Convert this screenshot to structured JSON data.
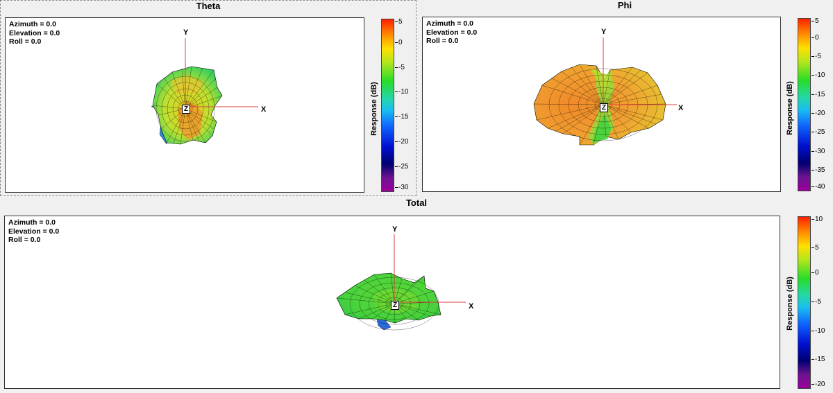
{
  "panels": {
    "theta": {
      "title": "Theta",
      "azimuth": "Azimuth = 0.0",
      "elevation": "Elevation = 0.0",
      "roll": "Roll = 0.0",
      "axes": {
        "x": "X",
        "y": "Y",
        "z": "Z"
      },
      "colorbar": {
        "title": "Response  (dB)",
        "ticks": [
          "5",
          "0",
          "-5",
          "-10",
          "-15",
          "-20",
          "-25",
          "-30"
        ]
      }
    },
    "phi": {
      "title": "Phi",
      "azimuth": "Azimuth = 0.0",
      "elevation": "Elevation = 0.0",
      "roll": "Roll = 0.0",
      "axes": {
        "x": "X",
        "y": "Y",
        "z": "Z"
      },
      "colorbar": {
        "title": "Response  (dB)",
        "ticks": [
          "5",
          "0",
          "-5",
          "-10",
          "-15",
          "-20",
          "-25",
          "-30",
          "-35",
          "-40"
        ]
      }
    },
    "total": {
      "title": "Total",
      "azimuth": "Azimuth = 0.0",
      "elevation": "Elevation = 0.0",
      "roll": "Roll = 0.0",
      "axes": {
        "x": "X",
        "y": "Y",
        "z": "Z"
      },
      "colorbar": {
        "title": "Response  (dB)",
        "ticks": [
          "10",
          "5",
          "0",
          "-5",
          "-10",
          "-15",
          "-20"
        ]
      }
    }
  },
  "colors": {
    "axis_line": "#d84040",
    "mesh_line": "#000000",
    "orange": "#ef8a2b",
    "yellow": "#d8e02a",
    "green": "#3fd23f",
    "cyan": "#3cc6d8",
    "blue": "#2a5ad8"
  }
}
